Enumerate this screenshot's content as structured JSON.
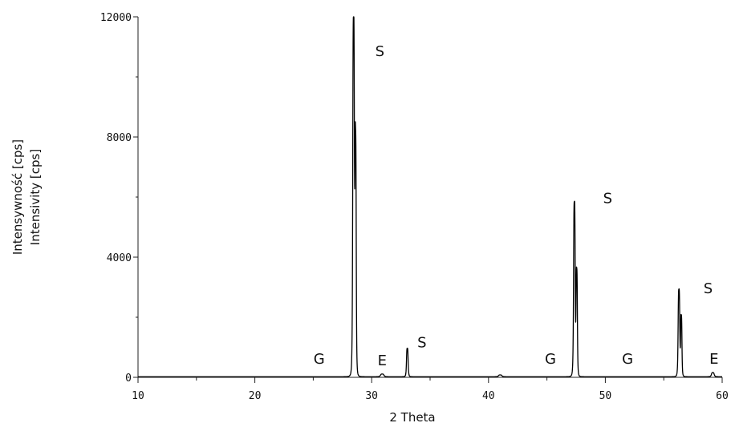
{
  "chart_data": {
    "type": "line",
    "title": "",
    "xlabel": "2 Theta",
    "ylabel_lines": [
      "Intensywność [cps]",
      "Intensivity [cps]"
    ],
    "xlim": [
      10,
      60
    ],
    "ylim": [
      0,
      12000
    ],
    "x_ticks": [
      10,
      20,
      30,
      40,
      50,
      60
    ],
    "y_ticks": [
      0,
      4000,
      8000,
      12000
    ],
    "grid": false,
    "line_color": "#000000",
    "series": [
      {
        "peaks": [
          {
            "x": 28.45,
            "y": 11900,
            "hw": 0.12
          },
          {
            "x": 28.62,
            "y": 7800,
            "hw": 0.1
          },
          {
            "x": 30.9,
            "y": 90,
            "hw": 0.25
          },
          {
            "x": 33.05,
            "y": 950,
            "hw": 0.12
          },
          {
            "x": 41.0,
            "y": 60,
            "hw": 0.25
          },
          {
            "x": 47.35,
            "y": 5800,
            "hw": 0.12
          },
          {
            "x": 47.55,
            "y": 3500,
            "hw": 0.1
          },
          {
            "x": 56.3,
            "y": 2900,
            "hw": 0.12
          },
          {
            "x": 56.5,
            "y": 2000,
            "hw": 0.1
          },
          {
            "x": 59.2,
            "y": 140,
            "hw": 0.2
          }
        ],
        "baseline": 20
      }
    ],
    "annotations": [
      {
        "text": "S",
        "x": 30.7,
        "y": 10700
      },
      {
        "text": "S",
        "x": 34.3,
        "y": 1000
      },
      {
        "text": "S",
        "x": 50.2,
        "y": 5800
      },
      {
        "text": "S",
        "x": 58.8,
        "y": 2800
      },
      {
        "text": "G",
        "x": 25.5,
        "y": 450
      },
      {
        "text": "G",
        "x": 45.3,
        "y": 450
      },
      {
        "text": "G",
        "x": 51.9,
        "y": 450
      },
      {
        "text": "E",
        "x": 30.9,
        "y": 400
      },
      {
        "text": "E",
        "x": 59.3,
        "y": 450
      }
    ]
  }
}
